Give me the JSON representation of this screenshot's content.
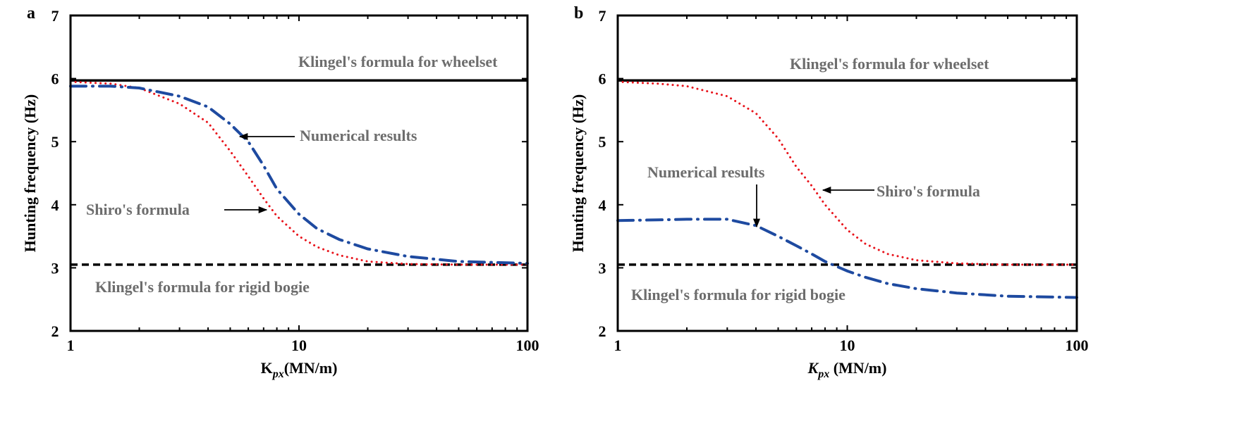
{
  "chart_data": [
    {
      "panel_label": "a",
      "type": "line",
      "xlabel_main": "K",
      "xlabel_sub": "px",
      "xlabel_unit": "(MN/m)",
      "ylabel": "Hunting frequency (Hz)",
      "xscale": "log",
      "xlim": [
        1,
        100
      ],
      "ylim": [
        2,
        7
      ],
      "xticks": [
        "1",
        "10",
        "100"
      ],
      "yticks": [
        "2",
        "3",
        "4",
        "5",
        "6",
        "7"
      ],
      "grid": false,
      "reference_lines": [
        {
          "label": "Klingel's formula for wheelset",
          "y": 5.97,
          "style": "solid",
          "color": "#000000"
        },
        {
          "label": "Klingel's formula for rigid bogie",
          "y": 3.05,
          "style": "dashed",
          "color": "#000000"
        }
      ],
      "series": [
        {
          "label": "Shiro's formula",
          "style": "dotted",
          "color": "#e8141c",
          "x": [
            1,
            1.5,
            2,
            3,
            4,
            5,
            6,
            7,
            8,
            10,
            12,
            15,
            20,
            30,
            50,
            100
          ],
          "y": [
            5.95,
            5.92,
            5.85,
            5.6,
            5.3,
            4.85,
            4.45,
            4.1,
            3.82,
            3.5,
            3.33,
            3.2,
            3.1,
            3.06,
            3.05,
            3.05
          ]
        },
        {
          "label": "Numerical results",
          "style": "dashdot",
          "color": "#1e4aa0",
          "x": [
            1,
            1.5,
            2,
            3,
            4,
            5,
            6,
            7,
            8,
            10,
            12,
            15,
            20,
            30,
            50,
            100
          ],
          "y": [
            5.88,
            5.88,
            5.85,
            5.72,
            5.55,
            5.28,
            5.0,
            4.62,
            4.25,
            3.85,
            3.62,
            3.45,
            3.3,
            3.18,
            3.1,
            3.07
          ]
        }
      ],
      "annotations": [
        {
          "text": "Numerical results",
          "arrow_to_series": 1
        },
        {
          "text": "Shiro's formula",
          "arrow_to_series": 0
        }
      ]
    },
    {
      "panel_label": "b",
      "type": "line",
      "xlabel_main": "K",
      "xlabel_sub": "px",
      "xlabel_unit": " (MN/m)",
      "ylabel": "Hunting frequency (Hz)",
      "xscale": "log",
      "xlim": [
        1,
        100
      ],
      "ylim": [
        2,
        7
      ],
      "xticks": [
        "1",
        "10",
        "100"
      ],
      "yticks": [
        "2",
        "3",
        "4",
        "5",
        "6",
        "7"
      ],
      "grid": false,
      "reference_lines": [
        {
          "label": "Klingel's formula for wheelset",
          "y": 5.97,
          "style": "solid",
          "color": "#000000"
        },
        {
          "label": "Klingel's formula for rigid bogie",
          "y": 3.05,
          "style": "dashed",
          "color": "#000000"
        }
      ],
      "series": [
        {
          "label": "Shiro's formula",
          "style": "dotted",
          "color": "#e8141c",
          "x": [
            1,
            1.5,
            2,
            3,
            4,
            5,
            6,
            7,
            8,
            10,
            12,
            15,
            20,
            30,
            50,
            100
          ],
          "y": [
            5.95,
            5.92,
            5.88,
            5.72,
            5.45,
            5.05,
            4.6,
            4.3,
            4.0,
            3.6,
            3.38,
            3.22,
            3.12,
            3.07,
            3.05,
            3.05
          ]
        },
        {
          "label": "Numerical results",
          "style": "dashdot",
          "color": "#1e4aa0",
          "x": [
            1,
            1.5,
            2,
            3,
            4,
            5,
            6,
            7,
            8,
            10,
            12,
            15,
            20,
            30,
            50,
            100
          ],
          "y": [
            3.75,
            3.76,
            3.77,
            3.77,
            3.67,
            3.5,
            3.35,
            3.22,
            3.1,
            2.95,
            2.85,
            2.75,
            2.67,
            2.6,
            2.55,
            2.53
          ]
        }
      ],
      "annotations": [
        {
          "text": "Numerical results",
          "arrow_to_series": 1
        },
        {
          "text": "Shiro's formula",
          "arrow_to_series": 0
        }
      ]
    }
  ]
}
